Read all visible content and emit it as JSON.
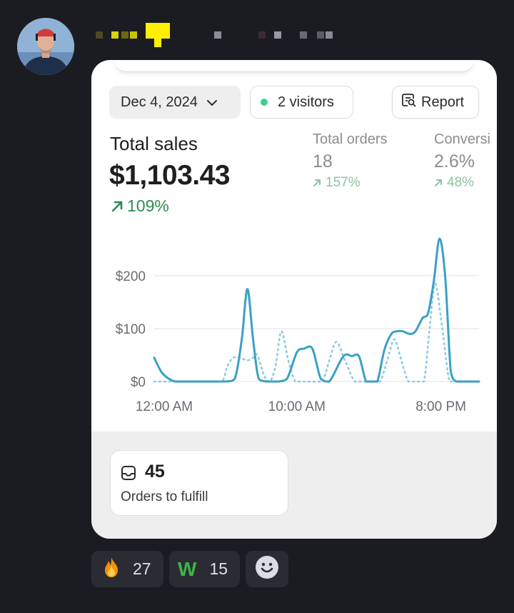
{
  "message": {
    "reactions": [
      {
        "emoji": "🔥",
        "count": "27"
      },
      {
        "emoji": "W",
        "count": "15"
      }
    ]
  },
  "card": {
    "date_filter": "Dec 4, 2024",
    "visitors": "2 visitors",
    "report_label": "Report",
    "total_sales": {
      "label": "Total sales",
      "value": "$1,103.43",
      "change": "109%"
    },
    "total_orders": {
      "label": "Total orders",
      "value": "18",
      "change": "157%"
    },
    "conversion": {
      "label": "Conversi",
      "value": "2.6%",
      "change": "48%"
    },
    "orders_to_fulfill": {
      "count": "45",
      "label": "Orders to fulfill"
    }
  },
  "chart_data": {
    "type": "line",
    "y_ticks": [
      "$200",
      "$100",
      "$0"
    ],
    "x_ticks": [
      "12:00 AM",
      "10:00 AM",
      "8:00 PM"
    ],
    "ylim": [
      0,
      270
    ],
    "grid": true,
    "colors": {
      "current": "#3aa0c6",
      "previous": "#8ecbe0"
    },
    "series": [
      {
        "style": "solid",
        "x": [
          0,
          0.6,
          1.5,
          3,
          5,
          5.7,
          6.2,
          6.6,
          7,
          7.4,
          8,
          8.4,
          8.8,
          9.4,
          10.1,
          10.6,
          11.2,
          11.8,
          12.4,
          13.4,
          14,
          14.5,
          15,
          15.4,
          15.8,
          16.3,
          16.8,
          17.2,
          17.6,
          18.1,
          18.5,
          19,
          19.4,
          19.8,
          20.2,
          20.6,
          21,
          21.4,
          21.9,
          23
        ],
        "y": [
          45,
          15,
          0,
          0,
          0,
          5,
          80,
          175,
          80,
          5,
          0,
          0,
          0,
          5,
          55,
          62,
          62,
          5,
          0,
          48,
          48,
          48,
          0,
          0,
          0,
          60,
          90,
          95,
          95,
          90,
          95,
          120,
          130,
          190,
          270,
          200,
          20,
          0,
          0,
          0
        ]
      },
      {
        "style": "dotted",
        "x": [
          0,
          4,
          4.8,
          5.2,
          5.6,
          6.1,
          6.6,
          7,
          7.3,
          7.8,
          8.2,
          8.6,
          9,
          9.5,
          10,
          10.6,
          11.2,
          11.9,
          12.4,
          12.9,
          13.5,
          14.2,
          14.8,
          15.5,
          16,
          16.5,
          17,
          17.5,
          18,
          18.6,
          19.1,
          19.5,
          19.9,
          20.4,
          20.9,
          21.3,
          21.8,
          23
        ],
        "y": [
          0,
          0,
          0,
          30,
          45,
          45,
          40,
          45,
          50,
          10,
          0,
          30,
          95,
          40,
          0,
          0,
          0,
          0,
          40,
          75,
          40,
          0,
          0,
          0,
          0,
          40,
          80,
          40,
          0,
          0,
          0,
          100,
          185,
          100,
          0,
          0,
          0,
          0
        ]
      }
    ]
  },
  "colors": {
    "accent_green": "#2e8a4f",
    "dot_green": "#3bd08a"
  }
}
